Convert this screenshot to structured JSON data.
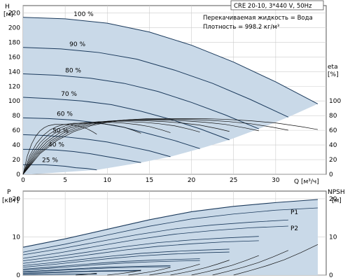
{
  "chart_data": [
    {
      "type": "line",
      "title": "CRE 20-10, 3*440 V, 50Hz",
      "annotations": [
        "Перекачиваемая жидкость = Вода",
        "Плотность = 998.2 кг/м³"
      ],
      "ylabel": "H",
      "ylabel_unit": "[м]",
      "y2label": "eta",
      "y2label_unit": "[%]",
      "xlabel": "Q [м³/ч]",
      "xlim": [
        0,
        36
      ],
      "ylim": [
        0,
        230
      ],
      "y2lim": [
        0,
        230
      ],
      "xticks": [
        "0",
        "5",
        "10",
        "15",
        "20",
        "25",
        "30"
      ],
      "yticks": [
        "0",
        "20",
        "40",
        "60",
        "80",
        "100",
        "120",
        "140",
        "160",
        "180",
        "200",
        "220"
      ],
      "y2ticks": [
        "0",
        "20",
        "40",
        "60",
        "80",
        "100"
      ],
      "grid": true,
      "speed_labels": [
        "100 %",
        "90 %",
        "80 %",
        "70 %",
        "60 %",
        "50 %",
        "40 %",
        "25 %"
      ],
      "series": [
        {
          "name": "100 %",
          "x": [
            0,
            5,
            10,
            15,
            20,
            25,
            30,
            35
          ],
          "values": [
            214,
            212,
            206,
            194,
            176,
            153,
            126,
            96
          ]
        },
        {
          "name": "90 %",
          "x": [
            0,
            4.5,
            9,
            13.5,
            18,
            22.5,
            27,
            31.5
          ],
          "values": [
            173,
            171,
            166,
            157,
            142,
            124,
            102,
            78
          ]
        },
        {
          "name": "80 %",
          "x": [
            0,
            4,
            8,
            12,
            16,
            20,
            24,
            28
          ],
          "values": [
            137,
            135,
            131,
            124,
            113,
            98,
            81,
            62
          ]
        },
        {
          "name": "70 %",
          "x": [
            0,
            3.5,
            7,
            10.5,
            14,
            17.5,
            21,
            24.5
          ],
          "values": [
            105,
            103,
            100,
            95,
            86,
            75,
            62,
            47
          ]
        },
        {
          "name": "60 %",
          "x": [
            0,
            3,
            6,
            9,
            12,
            15,
            18,
            21
          ],
          "values": [
            77,
            76,
            74,
            70,
            64,
            55,
            46,
            35
          ]
        },
        {
          "name": "50 %",
          "x": [
            0,
            2.5,
            5,
            7.5,
            10,
            12.5,
            15,
            17.5
          ],
          "values": [
            54,
            53,
            51,
            48,
            44,
            38,
            32,
            24
          ]
        },
        {
          "name": "40 %",
          "x": [
            0,
            2,
            4,
            6,
            8,
            10,
            12,
            14
          ],
          "values": [
            34,
            34,
            33,
            31,
            28,
            24,
            20,
            16
          ]
        },
        {
          "name": "25 %",
          "x": [
            0,
            1.25,
            2.5,
            3.75,
            5,
            6.25,
            7.5,
            8.75
          ],
          "values": [
            13,
            13,
            13,
            12,
            11,
            9,
            8,
            6
          ]
        }
      ],
      "eta_x": [
        0,
        2,
        4,
        6,
        8,
        10,
        12,
        15,
        18,
        21,
        24,
        27,
        30,
        33,
        35
      ],
      "eta_values": [
        0,
        28,
        46,
        58,
        66,
        71,
        74,
        76,
        76,
        76,
        75,
        73,
        70,
        65,
        61
      ]
    },
    {
      "type": "line",
      "ylabel": "P",
      "ylabel_unit": "[кВт]",
      "y2label": "NPSH",
      "y2label_unit": "[м]",
      "xlim": [
        0,
        36
      ],
      "ylim": [
        0,
        22
      ],
      "yticks": [
        "0",
        "10",
        "20"
      ],
      "y2ticks": [
        "0",
        "10",
        "20"
      ],
      "grid": true,
      "series": [
        {
          "name": "P1",
          "x": [
            0,
            5,
            10,
            15,
            20,
            25,
            30,
            35
          ],
          "values": [
            7.3,
            9.5,
            12.0,
            14.5,
            16.6,
            18.0,
            19.0,
            19.8
          ]
        },
        {
          "name": "P2",
          "x": [
            0,
            5,
            10,
            15,
            20,
            25,
            30,
            35
          ],
          "values": [
            6.0,
            8.1,
            10.5,
            12.8,
            14.7,
            16.0,
            17.0,
            17.6
          ]
        }
      ],
      "npsh_x": [
        25,
        27,
        29,
        31,
        33,
        35
      ],
      "npsh_values": [
        0,
        1.2,
        2.5,
        4.0,
        5.9,
        8.0
      ]
    }
  ],
  "colors": {
    "envelope": "#c9d9e8",
    "curve": "#1b3a5c",
    "grid": "#cccccc",
    "frame": "#555555"
  }
}
